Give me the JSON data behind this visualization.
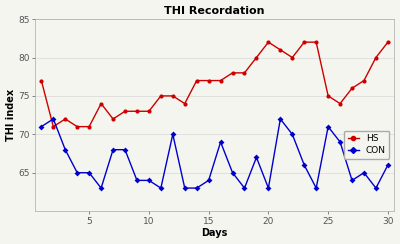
{
  "title": "THI Recordation",
  "xlabel": "Days",
  "ylabel": "THI index",
  "hs_color": "#cc0000",
  "con_color": "#0000cc",
  "background_color": "#f5f5f0",
  "xlim": [
    0.5,
    30.5
  ],
  "ylim": [
    60,
    85
  ],
  "xticks": [
    5,
    10,
    15,
    20,
    25,
    30
  ],
  "yticks": [
    65,
    70,
    75,
    80,
    85
  ],
  "hs_x": [
    1,
    2,
    3,
    4,
    5,
    6,
    7,
    8,
    9,
    10,
    11,
    12,
    13,
    14,
    15,
    16,
    17,
    18,
    19,
    20,
    21,
    22,
    23,
    24,
    25,
    26,
    27,
    28,
    29,
    30
  ],
  "hs_y": [
    77,
    71,
    72,
    71,
    71,
    74,
    72,
    73,
    73,
    73,
    75,
    75,
    74,
    77,
    77,
    77,
    78,
    78,
    80,
    82,
    81,
    80,
    82,
    82,
    75,
    74,
    76,
    77,
    80,
    82
  ],
  "con_x": [
    1,
    2,
    3,
    4,
    5,
    6,
    7,
    8,
    9,
    10,
    11,
    12,
    13,
    14,
    15,
    16,
    17,
    18,
    19,
    20,
    21,
    22,
    23,
    24,
    25,
    26,
    27,
    28,
    29,
    30
  ],
  "con_y": [
    71,
    72,
    68,
    65,
    65,
    63,
    68,
    68,
    64,
    64,
    63,
    70,
    63,
    63,
    64,
    69,
    65,
    63,
    67,
    63,
    72,
    70,
    66,
    63,
    71,
    69,
    64,
    65,
    63,
    66
  ]
}
